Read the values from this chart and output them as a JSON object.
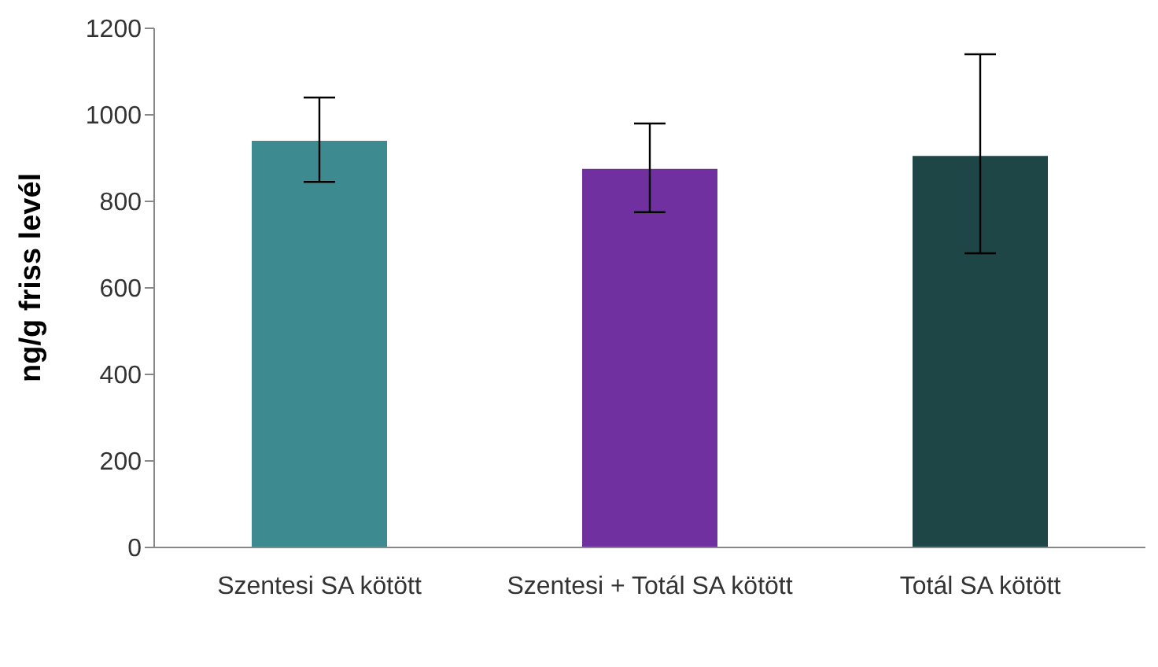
{
  "chart_data": {
    "type": "bar",
    "ylabel": "ng/g friss levél",
    "categories": [
      "Szentesi SA kötött",
      "Szentesi + Totál SA kötött",
      "Totál SA kötött"
    ],
    "values": [
      940,
      875,
      905
    ],
    "colors": [
      "#3d8a91",
      "#7030a0",
      "#1f4647"
    ],
    "errors": [
      [
        845,
        1040
      ],
      [
        775,
        980
      ],
      [
        680,
        1140
      ]
    ],
    "ylim": [
      0,
      1200
    ],
    "yticks": [
      0,
      200,
      400,
      600,
      800,
      1000,
      1200
    ],
    "grid": false,
    "legend": false
  }
}
